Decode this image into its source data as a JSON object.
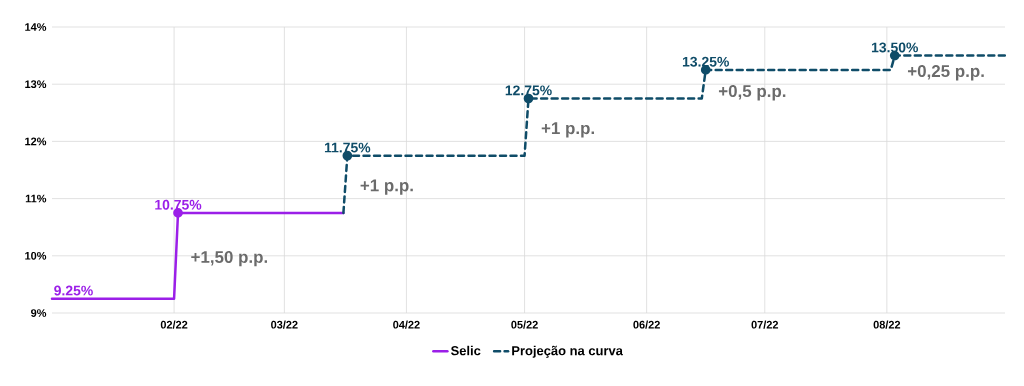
{
  "chart_data": {
    "type": "line",
    "xlim": [
      "2022-01-01",
      "2022-08-31"
    ],
    "xticks": [
      {
        "value": "2022-02-01",
        "label": "02/22"
      },
      {
        "value": "2022-03-01",
        "label": "03/22"
      },
      {
        "value": "2022-04-01",
        "label": "04/22"
      },
      {
        "value": "2022-05-01",
        "label": "05/22"
      },
      {
        "value": "2022-06-01",
        "label": "06/22"
      },
      {
        "value": "2022-07-01",
        "label": "07/22"
      },
      {
        "value": "2022-08-01",
        "label": "08/22"
      }
    ],
    "ylim": [
      9,
      14
    ],
    "yticks": [
      {
        "value": 9,
        "label": "9%"
      },
      {
        "value": 10,
        "label": "10%"
      },
      {
        "value": 11,
        "label": "11%"
      },
      {
        "value": 12,
        "label": "12%"
      },
      {
        "value": 13,
        "label": "13%"
      },
      {
        "value": 14,
        "label": "14%"
      }
    ],
    "grid": true,
    "legend": "bottom",
    "series": [
      {
        "name": "Selic",
        "color": "#9b1fe8",
        "line_style": "solid",
        "x": [
          "2022-01-01",
          "2022-02-01",
          "2022-02-02",
          "2022-03-16"
        ],
        "values": [
          9.25,
          9.25,
          10.75,
          10.75
        ],
        "value_labels": [
          "9.25%",
          null,
          null,
          null
        ]
      },
      {
        "name": "Projeção na curva",
        "color": "#0f4c68",
        "line_style": "dashed",
        "x": [
          "2022-03-16",
          "2022-03-17",
          "2022-05-01",
          "2022-05-02",
          "2022-06-15",
          "2022-06-16",
          "2022-08-02",
          "2022-08-03",
          "2022-08-31"
        ],
        "values": [
          10.75,
          11.75,
          11.75,
          12.75,
          12.75,
          13.25,
          13.25,
          13.5,
          13.5
        ]
      },
      {
        "type": "scatter",
        "marker": "circle",
        "color": "#9b1fe8",
        "x": [
          "2022-02-02"
        ],
        "values": [
          10.75
        ],
        "value_labels": [
          "10.75%"
        ]
      },
      {
        "type": "scatter",
        "marker": "circle",
        "color": "#0f4c68",
        "x": [
          "2022-03-17",
          "2022-05-02",
          "2022-06-16",
          "2022-08-03"
        ],
        "values": [
          11.75,
          12.75,
          13.25,
          13.5
        ],
        "value_labels": [
          "11.75%",
          "12.75%",
          "13.25%",
          "13.50%"
        ]
      }
    ],
    "annotations": [
      {
        "text": "+1,50 p.p.",
        "x": "2022-02-02",
        "y": 9.95
      },
      {
        "text": "+1 p.p.",
        "x": "2022-03-17",
        "y": 11.2
      },
      {
        "text": "+1 p.p.",
        "x": "2022-05-02",
        "y": 12.2
      },
      {
        "text": "+0,5 p.p.",
        "x": "2022-06-16",
        "y": 12.85
      },
      {
        "text": "+0,25 p.p.",
        "x": "2022-08-03",
        "y": 13.2
      }
    ]
  }
}
